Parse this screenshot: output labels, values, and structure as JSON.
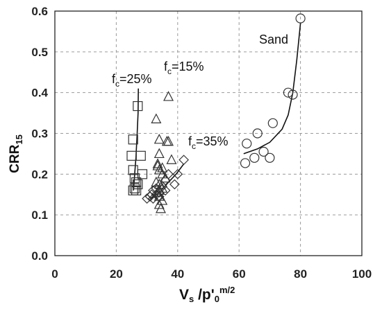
{
  "chart_data": {
    "type": "scatter",
    "xlabel": {
      "main": "V",
      "sub": "s",
      "mid": " /p'",
      "sub2": "0",
      "sup": "m/2"
    },
    "ylabel": {
      "main": "CRR",
      "sub": "15"
    },
    "xlim": [
      0,
      100
    ],
    "ylim": [
      0,
      0.6
    ],
    "x_ticks": [
      "0",
      "20",
      "40",
      "60",
      "80",
      "100"
    ],
    "y_ticks": [
      "0.0",
      "0.1",
      "0.2",
      "0.3",
      "0.4",
      "0.5",
      "0.6"
    ],
    "grid": true,
    "series": [
      {
        "name": "Sand",
        "marker": "circle",
        "label": {
          "text": "Sand"
        },
        "points": [
          [
            62,
            0.227
          ],
          [
            62.5,
            0.275
          ],
          [
            65,
            0.24
          ],
          [
            66,
            0.3
          ],
          [
            68,
            0.255
          ],
          [
            70,
            0.24
          ],
          [
            71,
            0.325
          ],
          [
            76,
            0.4
          ],
          [
            77.5,
            0.395
          ],
          [
            80,
            0.582
          ]
        ],
        "fit": [
          [
            61.5,
            0.25
          ],
          [
            66,
            0.262
          ],
          [
            70,
            0.278
          ],
          [
            74,
            0.31
          ],
          [
            76,
            0.345
          ],
          [
            77.5,
            0.4
          ],
          [
            78.8,
            0.48
          ],
          [
            80,
            0.57
          ]
        ]
      },
      {
        "name": "fc=15%",
        "marker": "triangle",
        "label": {
          "main": "f",
          "sub": "c",
          "rest": "=15%"
        },
        "points": [
          [
            33,
            0.335
          ],
          [
            37,
            0.39
          ],
          [
            34,
            0.285
          ],
          [
            36.5,
            0.28
          ],
          [
            37,
            0.28
          ],
          [
            34,
            0.25
          ],
          [
            38,
            0.235
          ],
          [
            33.5,
            0.22
          ],
          [
            34,
            0.21
          ],
          [
            35,
            0.2
          ],
          [
            36,
            0.19
          ],
          [
            33,
            0.18
          ],
          [
            34,
            0.175
          ],
          [
            35,
            0.165
          ],
          [
            33.5,
            0.155
          ],
          [
            34,
            0.145
          ],
          [
            35,
            0.135
          ],
          [
            34,
            0.125
          ],
          [
            34.5,
            0.115
          ],
          [
            33.5,
            0.225
          ],
          [
            35,
            0.215
          ],
          [
            34,
            0.16
          ]
        ]
      },
      {
        "name": "fc=25%",
        "marker": "square",
        "label": {
          "main": "f",
          "sub": "c",
          "rest": "=25%"
        },
        "points": [
          [
            27,
            0.367
          ],
          [
            25.5,
            0.285
          ],
          [
            25,
            0.245
          ],
          [
            28,
            0.245
          ],
          [
            25.5,
            0.21
          ],
          [
            28.5,
            0.2
          ],
          [
            26,
            0.19
          ],
          [
            26.5,
            0.18
          ],
          [
            27,
            0.175
          ],
          [
            26,
            0.165
          ],
          [
            26.5,
            0.16
          ],
          [
            25.5,
            0.16
          ]
        ],
        "fit": [
          [
            27.2,
            0.41
          ],
          [
            27.1,
            0.35
          ],
          [
            26.8,
            0.3
          ],
          [
            26.4,
            0.24
          ],
          [
            26.0,
            0.2
          ],
          [
            25.6,
            0.16
          ]
        ]
      },
      {
        "name": "fc=35%",
        "marker": "diamond",
        "label": {
          "main": "f",
          "sub": "c",
          "rest": "=35%"
        },
        "points": [
          [
            30,
            0.14
          ],
          [
            31,
            0.145
          ],
          [
            32,
            0.14
          ],
          [
            33,
            0.15
          ],
          [
            34,
            0.155
          ],
          [
            33,
            0.165
          ],
          [
            35,
            0.17
          ],
          [
            36,
            0.185
          ],
          [
            37,
            0.2
          ],
          [
            39,
            0.175
          ],
          [
            40,
            0.2
          ],
          [
            42,
            0.235
          ],
          [
            32,
            0.16
          ],
          [
            31.5,
            0.15
          ],
          [
            34,
            0.145
          ],
          [
            36,
            0.16
          ]
        ],
        "fit": [
          [
            31,
            0.14
          ],
          [
            34,
            0.155
          ],
          [
            37,
            0.18
          ],
          [
            39.5,
            0.2
          ],
          [
            42,
            0.225
          ]
        ]
      }
    ]
  }
}
